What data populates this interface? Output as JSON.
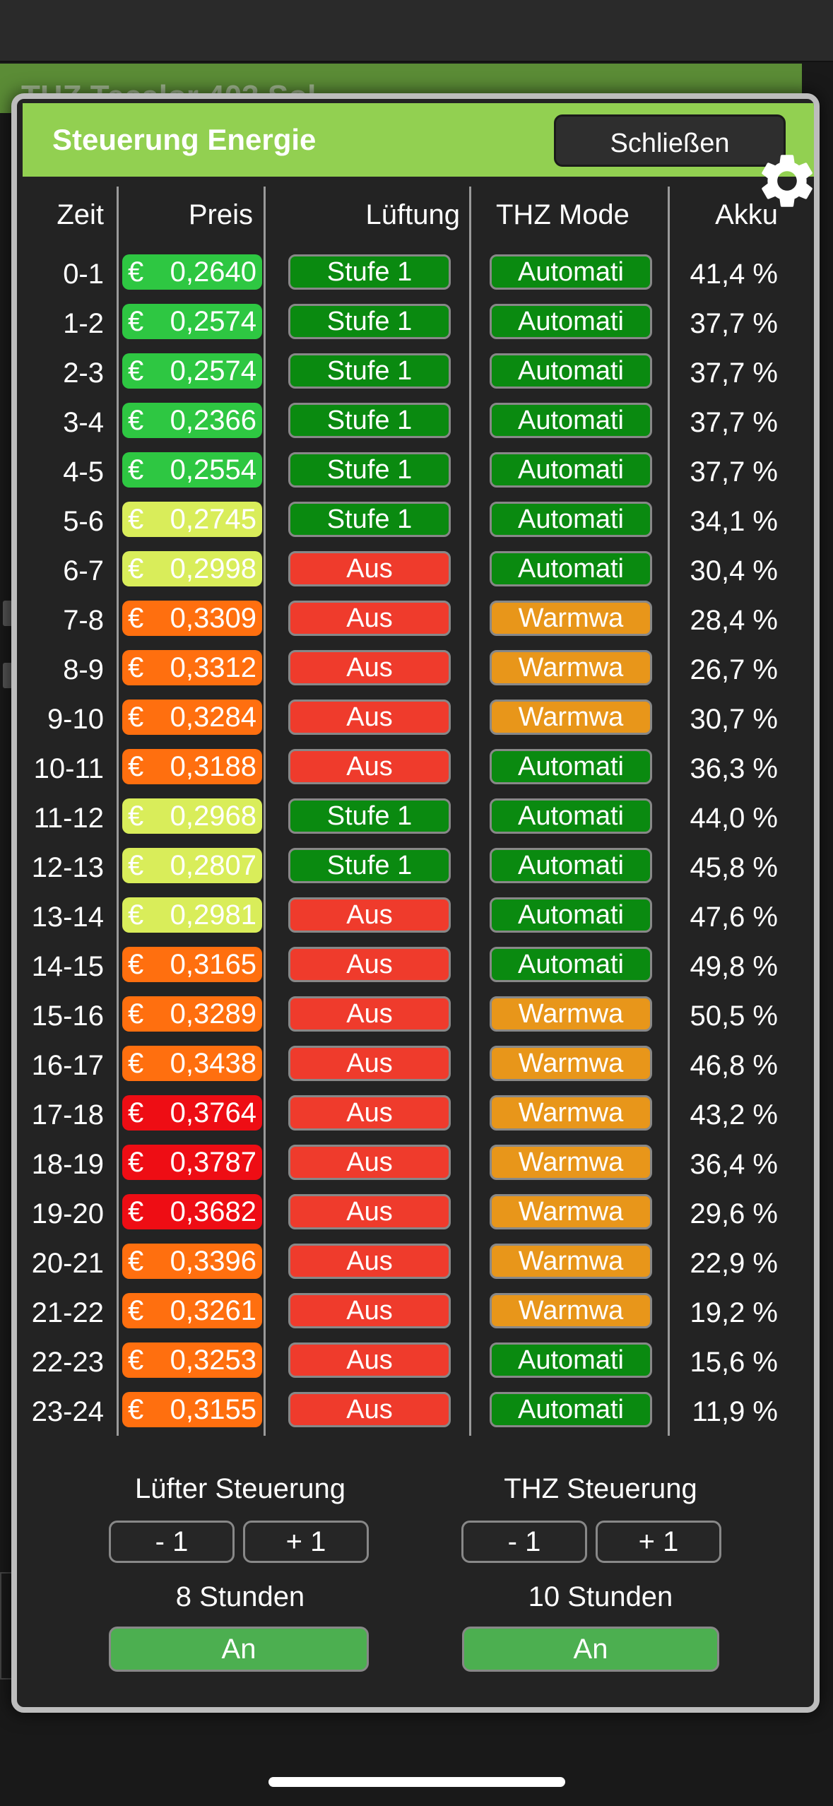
{
  "background": {
    "header_text": "THZ Tecalor 403 Sol"
  },
  "modal": {
    "title": "Steuerung Energie",
    "close_label": "Schließen",
    "settings_icon": "gear-icon"
  },
  "table": {
    "headers": {
      "zeit": "Zeit",
      "preis": "Preis",
      "lueftung": "Lüftung",
      "thz": "THZ Mode",
      "akku": "Akku"
    },
    "currency": "€",
    "colors": {
      "price_green": "#2ec742",
      "price_yellow": "#d9ed5a",
      "price_orange": "#ff6f0f",
      "price_red": "#ee0d14",
      "stufe": "#0a8a10",
      "aus": "#ef3b2c",
      "automatik": "#0a8a10",
      "warmwasser": "#e8961a"
    },
    "rows": [
      {
        "zeit": "0-1",
        "preis": "0,2640",
        "price_level": "green",
        "lueftung": "Stufe 1",
        "thz": "Automati",
        "akku": "41,4 %"
      },
      {
        "zeit": "1-2",
        "preis": "0,2574",
        "price_level": "green",
        "lueftung": "Stufe 1",
        "thz": "Automati",
        "akku": "37,7 %"
      },
      {
        "zeit": "2-3",
        "preis": "0,2574",
        "price_level": "green",
        "lueftung": "Stufe 1",
        "thz": "Automati",
        "akku": "37,7 %"
      },
      {
        "zeit": "3-4",
        "preis": "0,2366",
        "price_level": "green",
        "lueftung": "Stufe 1",
        "thz": "Automati",
        "akku": "37,7 %"
      },
      {
        "zeit": "4-5",
        "preis": "0,2554",
        "price_level": "green",
        "lueftung": "Stufe 1",
        "thz": "Automati",
        "akku": "37,7 %"
      },
      {
        "zeit": "5-6",
        "preis": "0,2745",
        "price_level": "yellow",
        "lueftung": "Stufe 1",
        "thz": "Automati",
        "akku": "34,1 %"
      },
      {
        "zeit": "6-7",
        "preis": "0,2998",
        "price_level": "yellow",
        "lueftung": "Aus",
        "thz": "Automati",
        "akku": "30,4 %"
      },
      {
        "zeit": "7-8",
        "preis": "0,3309",
        "price_level": "orange",
        "lueftung": "Aus",
        "thz": "Warmwa",
        "akku": "28,4 %"
      },
      {
        "zeit": "8-9",
        "preis": "0,3312",
        "price_level": "orange",
        "lueftung": "Aus",
        "thz": "Warmwa",
        "akku": "26,7 %"
      },
      {
        "zeit": "9-10",
        "preis": "0,3284",
        "price_level": "orange",
        "lueftung": "Aus",
        "thz": "Warmwa",
        "akku": "30,7 %"
      },
      {
        "zeit": "10-11",
        "preis": "0,3188",
        "price_level": "orange",
        "lueftung": "Aus",
        "thz": "Automati",
        "akku": "36,3 %"
      },
      {
        "zeit": "11-12",
        "preis": "0,2968",
        "price_level": "yellow",
        "lueftung": "Stufe 1",
        "thz": "Automati",
        "akku": "44,0 %"
      },
      {
        "zeit": "12-13",
        "preis": "0,2807",
        "price_level": "yellow",
        "lueftung": "Stufe 1",
        "thz": "Automati",
        "akku": "45,8 %"
      },
      {
        "zeit": "13-14",
        "preis": "0,2981",
        "price_level": "yellow",
        "lueftung": "Aus",
        "thz": "Automati",
        "akku": "47,6 %"
      },
      {
        "zeit": "14-15",
        "preis": "0,3165",
        "price_level": "orange",
        "lueftung": "Aus",
        "thz": "Automati",
        "akku": "49,8 %"
      },
      {
        "zeit": "15-16",
        "preis": "0,3289",
        "price_level": "orange",
        "lueftung": "Aus",
        "thz": "Warmwa",
        "akku": "50,5 %"
      },
      {
        "zeit": "16-17",
        "preis": "0,3438",
        "price_level": "orange",
        "lueftung": "Aus",
        "thz": "Warmwa",
        "akku": "46,8 %"
      },
      {
        "zeit": "17-18",
        "preis": "0,3764",
        "price_level": "red",
        "lueftung": "Aus",
        "thz": "Warmwa",
        "akku": "43,2 %"
      },
      {
        "zeit": "18-19",
        "preis": "0,3787",
        "price_level": "red",
        "lueftung": "Aus",
        "thz": "Warmwa",
        "akku": "36,4 %"
      },
      {
        "zeit": "19-20",
        "preis": "0,3682",
        "price_level": "red",
        "lueftung": "Aus",
        "thz": "Warmwa",
        "akku": "29,6 %"
      },
      {
        "zeit": "20-21",
        "preis": "0,3396",
        "price_level": "orange",
        "lueftung": "Aus",
        "thz": "Warmwa",
        "akku": "22,9 %"
      },
      {
        "zeit": "21-22",
        "preis": "0,3261",
        "price_level": "orange",
        "lueftung": "Aus",
        "thz": "Warmwa",
        "akku": "19,2 %"
      },
      {
        "zeit": "22-23",
        "preis": "0,3253",
        "price_level": "orange",
        "lueftung": "Aus",
        "thz": "Automati",
        "akku": "15,6 %"
      },
      {
        "zeit": "23-24",
        "preis": "0,3155",
        "price_level": "orange",
        "lueftung": "Aus",
        "thz": "Automati",
        "akku": "11,9 %"
      }
    ]
  },
  "controls": {
    "luefter": {
      "title": "Lüfter Steuerung",
      "minus": "- 1",
      "plus": "+ 1",
      "hours": "8 Stunden",
      "toggle": "An"
    },
    "thz": {
      "title": "THZ Steuerung",
      "minus": "- 1",
      "plus": "+ 1",
      "hours": "10 Stunden",
      "toggle": "An"
    }
  }
}
